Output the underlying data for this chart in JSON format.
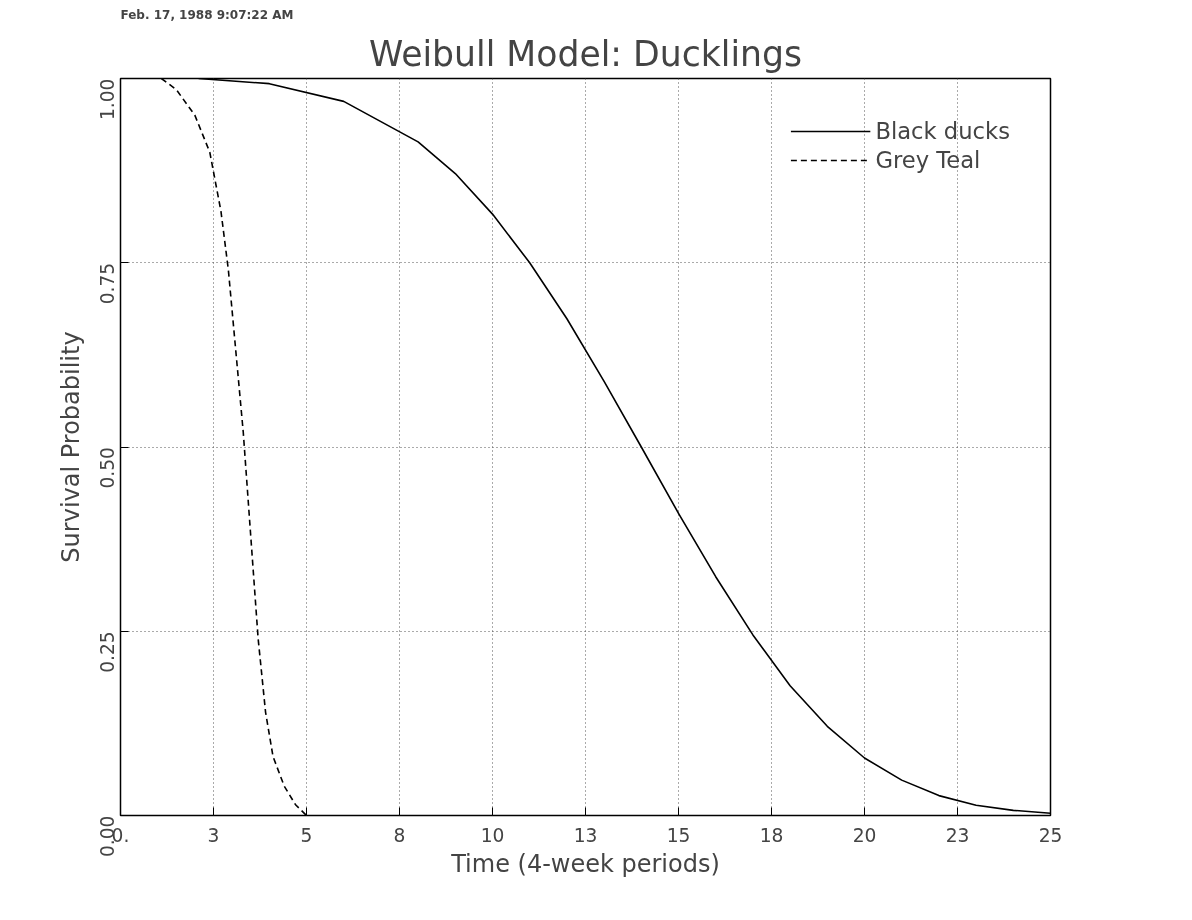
{
  "chart_data": {
    "type": "line",
    "title": "Weibull Model: Ducklings",
    "xlabel": "Time (4-week periods)",
    "ylabel": "Survival Probability",
    "annotations": [
      "Feb. 17, 1988     9:07:22 AM"
    ],
    "xlim": [
      0,
      25
    ],
    "ylim": [
      0,
      1
    ],
    "xticks": [
      {
        "value": 0,
        "label": "0."
      },
      {
        "value": 2.5,
        "label": "3"
      },
      5,
      {
        "value": 7.5,
        "label": "8"
      },
      10,
      {
        "value": 12.5,
        "label": "13"
      },
      15,
      {
        "value": 17.5,
        "label": "18"
      },
      20,
      {
        "value": 22.5,
        "label": "23"
      },
      25
    ],
    "yticks": [
      {
        "value": 0,
        "label": "0.00"
      },
      {
        "value": 0.25,
        "label": "0.25"
      },
      {
        "value": 0.5,
        "label": "0.50"
      },
      {
        "value": 0.75,
        "label": "0.75"
      },
      {
        "value": 1,
        "label": "1.00"
      }
    ],
    "grid": true,
    "legend": "top right",
    "series": [
      {
        "name": "Black ducks",
        "color": "#000000",
        "line_style": "solid",
        "x": [
          2.1,
          4,
          6,
          8,
          9,
          10,
          11,
          12,
          13,
          14,
          15,
          16,
          17,
          18,
          19,
          20,
          21,
          22,
          23,
          24,
          25
        ],
        "values": [
          1.0,
          0.993,
          0.969,
          0.914,
          0.871,
          0.816,
          0.75,
          0.674,
          0.589,
          0.5,
          0.41,
          0.324,
          0.245,
          0.176,
          0.121,
          0.078,
          0.048,
          0.027,
          0.014,
          0.007,
          0.003
        ]
      },
      {
        "name": "Grey Teal",
        "color": "#000000",
        "line_style": "dashed",
        "x": [
          1.1,
          1.5,
          2.0,
          2.4,
          2.7,
          2.9,
          3.1,
          3.3,
          3.5,
          3.7,
          3.9,
          4.1,
          4.4,
          4.7,
          5.0
        ],
        "values": [
          1.0,
          0.985,
          0.95,
          0.9,
          0.82,
          0.74,
          0.63,
          0.52,
          0.38,
          0.24,
          0.14,
          0.08,
          0.04,
          0.015,
          0.0
        ]
      }
    ]
  }
}
